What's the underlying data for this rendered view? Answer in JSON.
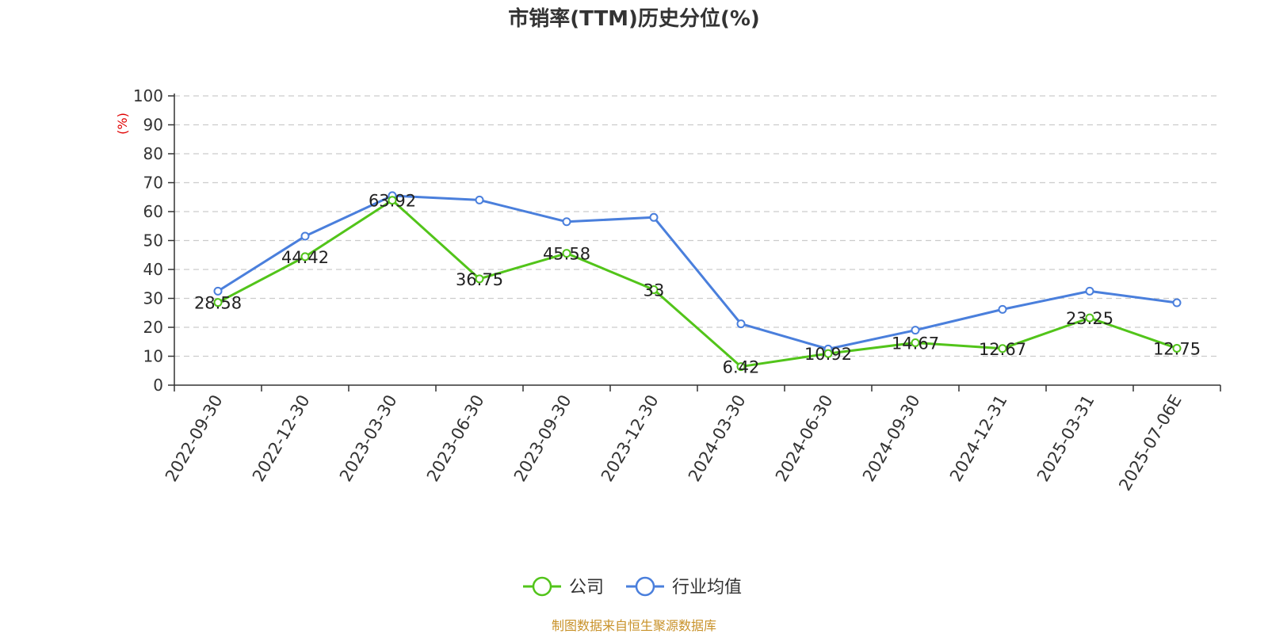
{
  "chart_data": {
    "type": "line",
    "title": "市销率(TTM)历史分位(%)",
    "ylabel": "(%)",
    "xlabel": "",
    "ylim": [
      0,
      100
    ],
    "yticks": [
      0,
      10,
      20,
      30,
      40,
      50,
      60,
      70,
      80,
      90,
      100
    ],
    "grid": true,
    "legend_position": "bottom",
    "categories": [
      "2022-09-30",
      "2022-12-30",
      "2023-03-30",
      "2023-06-30",
      "2023-09-30",
      "2023-12-30",
      "2024-03-30",
      "2024-06-30",
      "2024-09-30",
      "2024-12-31",
      "2025-03-31",
      "2025-07-06E"
    ],
    "series": [
      {
        "name": "公司",
        "color": "#52c41a",
        "values": [
          28.58,
          44.42,
          63.92,
          36.75,
          45.58,
          33,
          6.42,
          10.92,
          14.67,
          12.67,
          23.25,
          12.75
        ],
        "labels": [
          "28.58",
          "44.42",
          "63.92",
          "36.75",
          "45.58",
          "33",
          "6.42",
          "10.92",
          "14.67",
          "12.67",
          "23.25",
          "12.75"
        ]
      },
      {
        "name": "行业均值",
        "color": "#4a7fdc",
        "values": [
          32.5,
          51.5,
          65.5,
          64,
          56.5,
          58,
          21.2,
          12.5,
          19,
          26.2,
          32.5,
          28.5
        ]
      }
    ],
    "source": "制图数据来自恒生聚源数据库"
  }
}
